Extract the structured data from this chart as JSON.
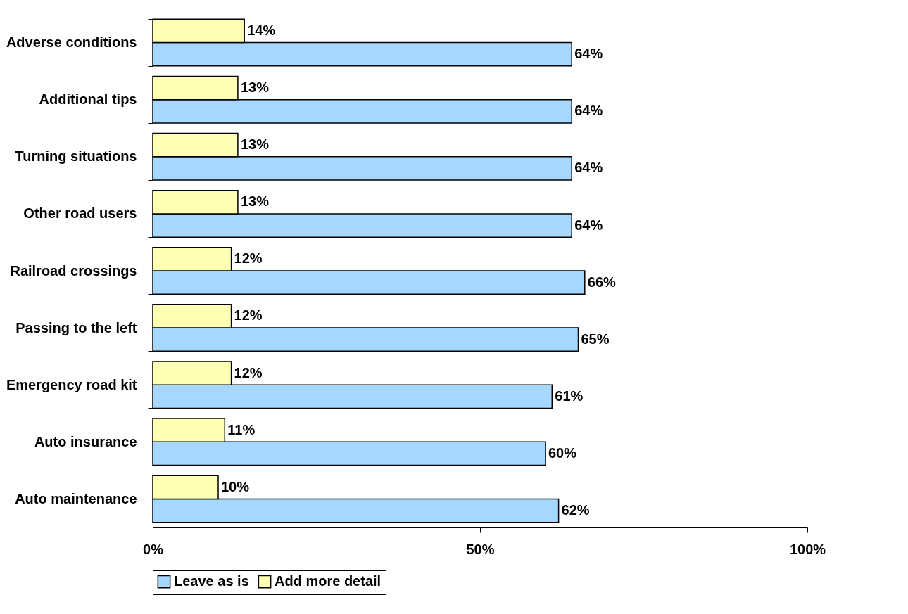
{
  "chart_data": {
    "type": "bar",
    "orientation": "horizontal",
    "categories": [
      "Adverse conditions",
      "Additional tips",
      "Turning situations",
      "Other road users",
      "Railroad crossings",
      "Passing to the left",
      "Emergency road kit",
      "Auto insurance",
      "Auto maintenance"
    ],
    "series": [
      {
        "name": "Leave as is",
        "color": "#a6d8ff",
        "values": [
          64,
          64,
          64,
          64,
          66,
          65,
          61,
          60,
          62
        ],
        "value_labels": [
          "64%",
          "64%",
          "64%",
          "64%",
          "66%",
          "65%",
          "61%",
          "60%",
          "62%"
        ]
      },
      {
        "name": "Add more detail",
        "color": "#ffffb3",
        "values": [
          14,
          13,
          13,
          13,
          12,
          12,
          12,
          11,
          10
        ],
        "value_labels": [
          "14%",
          "13%",
          "13%",
          "13%",
          "12%",
          "12%",
          "12%",
          "11%",
          "10%"
        ]
      }
    ],
    "xlim": [
      0,
      100
    ],
    "xticks": [
      {
        "value": 0,
        "label": "0%"
      },
      {
        "value": 50,
        "label": "50%"
      },
      {
        "value": 100,
        "label": "100%"
      }
    ],
    "grid": false,
    "legend": "bottom"
  }
}
